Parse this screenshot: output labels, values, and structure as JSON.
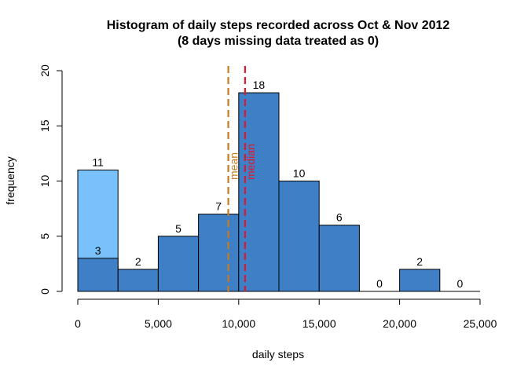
{
  "chart_data": {
    "type": "bar",
    "title_line1": "Histogram of daily steps recorded across Oct & Nov 2012",
    "title_line2": "(8 days missing data treated as 0)",
    "xlabel": "daily steps",
    "ylabel": "frequency",
    "xlim": [
      0,
      25000
    ],
    "ylim": [
      0,
      20
    ],
    "x_ticks": [
      0,
      5000,
      10000,
      15000,
      20000,
      25000
    ],
    "x_tick_labels": [
      "0",
      "5,000",
      "10,000",
      "15,000",
      "20,000",
      "25,000"
    ],
    "y_ticks": [
      0,
      5,
      10,
      15,
      20
    ],
    "y_tick_labels": [
      "0",
      "5",
      "10",
      "15",
      "20"
    ],
    "bin_edges": [
      0,
      2500,
      5000,
      7500,
      10000,
      12500,
      15000,
      17500,
      20000,
      22500,
      25000
    ],
    "series": [
      {
        "values": [
          11,
          0,
          0,
          0,
          0,
          0,
          0,
          0,
          0,
          0
        ],
        "color": "#78c1fa",
        "labels": [
          "11",
          "",
          "",
          "",
          "",
          "",
          "",
          "",
          "",
          ""
        ]
      },
      {
        "values": [
          3,
          2,
          5,
          7,
          18,
          10,
          6,
          0,
          2,
          0
        ],
        "color": "#3f7fc5",
        "labels": [
          "3",
          "2",
          "5",
          "7",
          "18",
          "10",
          "6",
          "0",
          "2",
          "0"
        ]
      }
    ],
    "reference_lines": [
      {
        "label": "mean",
        "value": 9354,
        "color": "#c87a1e"
      },
      {
        "label": "median",
        "value": 10395,
        "color": "#e0182d"
      }
    ]
  }
}
